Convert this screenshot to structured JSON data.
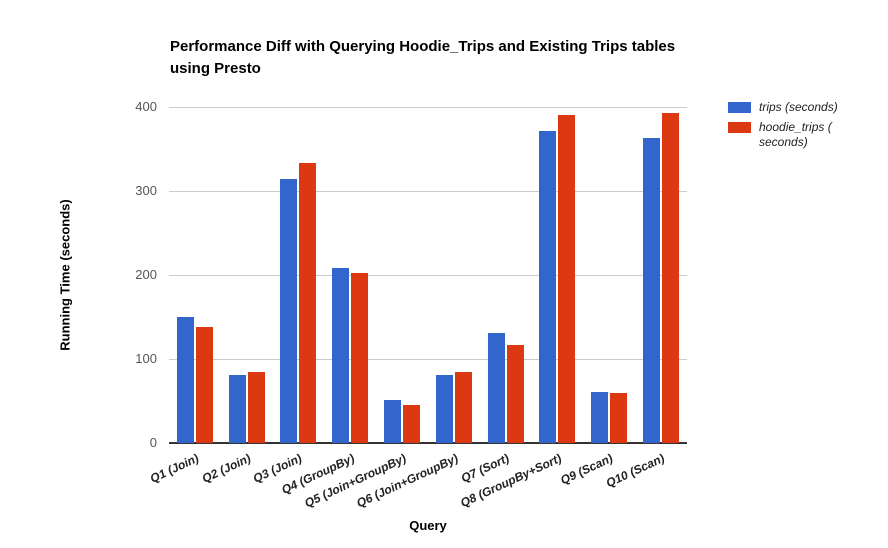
{
  "chart_data": {
    "type": "bar",
    "title": "Performance Diff with Querying Hoodie_Trips and Existing Trips tables using Presto",
    "title_lines": [
      "Performance Diff with Querying Hoodie_Trips and Existing Trips tables",
      "using Presto"
    ],
    "xlabel": "Query",
    "ylabel": "Running Time (seconds)",
    "ylim": [
      0,
      400
    ],
    "yticks": [
      0,
      100,
      200,
      300,
      400
    ],
    "grid": true,
    "legend_position": "right",
    "categories": [
      "Q1 (Join)",
      "Q2 (Join)",
      "Q3 (Join)",
      "Q4 (GroupBy)",
      "Q5 (Join+GroupBy)",
      "Q6 (Join+GroupBy)",
      "Q7 (Sort)",
      "Q8 (GroupBy+Sort)",
      "Q9 (Scan)",
      "Q10 (Scan)"
    ],
    "series": [
      {
        "key": "trips",
        "name": "trips (seconds)",
        "label_lines": [
          "trips (seconds)"
        ],
        "color": "#3366cc",
        "values": [
          150,
          81,
          314,
          208,
          51,
          81,
          131,
          371,
          61,
          363
        ]
      },
      {
        "key": "hoodie_trips",
        "name": "hoodie_trips (seconds)",
        "label_lines": [
          "hoodie_trips (",
          "seconds)"
        ],
        "color": "#dc3912",
        "values": [
          138,
          84,
          333,
          202,
          45,
          85,
          117,
          390,
          60,
          393
        ]
      }
    ],
    "colors": {
      "grid": "#cccccc",
      "baseline": "#333333",
      "tick_label": "#555555",
      "category_label": "#222222",
      "title": "#000000"
    }
  }
}
